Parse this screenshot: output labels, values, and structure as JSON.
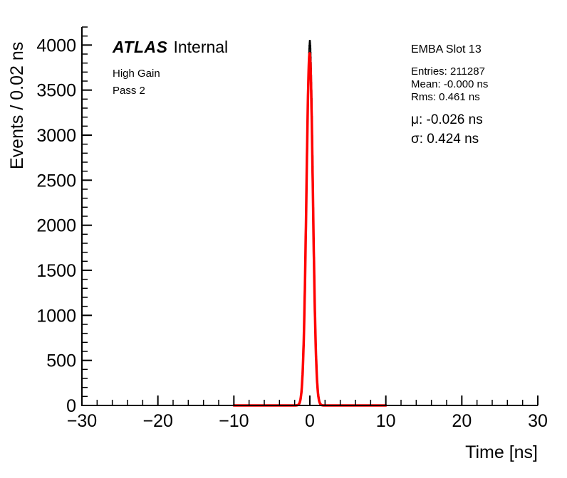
{
  "chart_data": {
    "type": "bar",
    "subtype": "histogram-with-gaussian-fit",
    "title": "",
    "xlabel": "Time [ns]",
    "ylabel": "Events / 0.02 ns",
    "xlim": [
      -30,
      30
    ],
    "ylim": [
      0,
      4200
    ],
    "x_major_ticks": [
      -30,
      -20,
      -10,
      0,
      10,
      20,
      30
    ],
    "x_tick_labels": [
      "−30",
      "−20",
      "−10",
      "0",
      "10",
      "20",
      "30"
    ],
    "x_minor_step": 2,
    "y_major_ticks": [
      0,
      500,
      1000,
      1500,
      2000,
      2500,
      3000,
      3500,
      4000
    ],
    "y_tick_labels": [
      "0",
      "500",
      "1000",
      "1500",
      "2000",
      "2500",
      "3000",
      "3500",
      "4000"
    ],
    "y_minor_step": 100,
    "grid": false,
    "histogram": {
      "color": "#000000",
      "mu": 0.0,
      "sigma": 0.424,
      "amplitude": 4050,
      "bin_width": 0.02,
      "range": [
        -30,
        30
      ]
    },
    "fit": {
      "color": "#ff0000",
      "mu": -0.026,
      "sigma": 0.424,
      "amplitude": 3910,
      "range": [
        -10,
        10
      ]
    },
    "annotations": {
      "atlas": "ATLAS",
      "atlas_suffix": "Internal",
      "gain": "High Gain",
      "pass": "Pass 2",
      "slot": "EMBA Slot 13",
      "entries": "Entries: 211287",
      "mean": "Mean: -0.000 ns",
      "rms": "Rms: 0.461 ns",
      "mu": "μ: -0.026 ns",
      "sigma": "σ: 0.424 ns"
    }
  }
}
